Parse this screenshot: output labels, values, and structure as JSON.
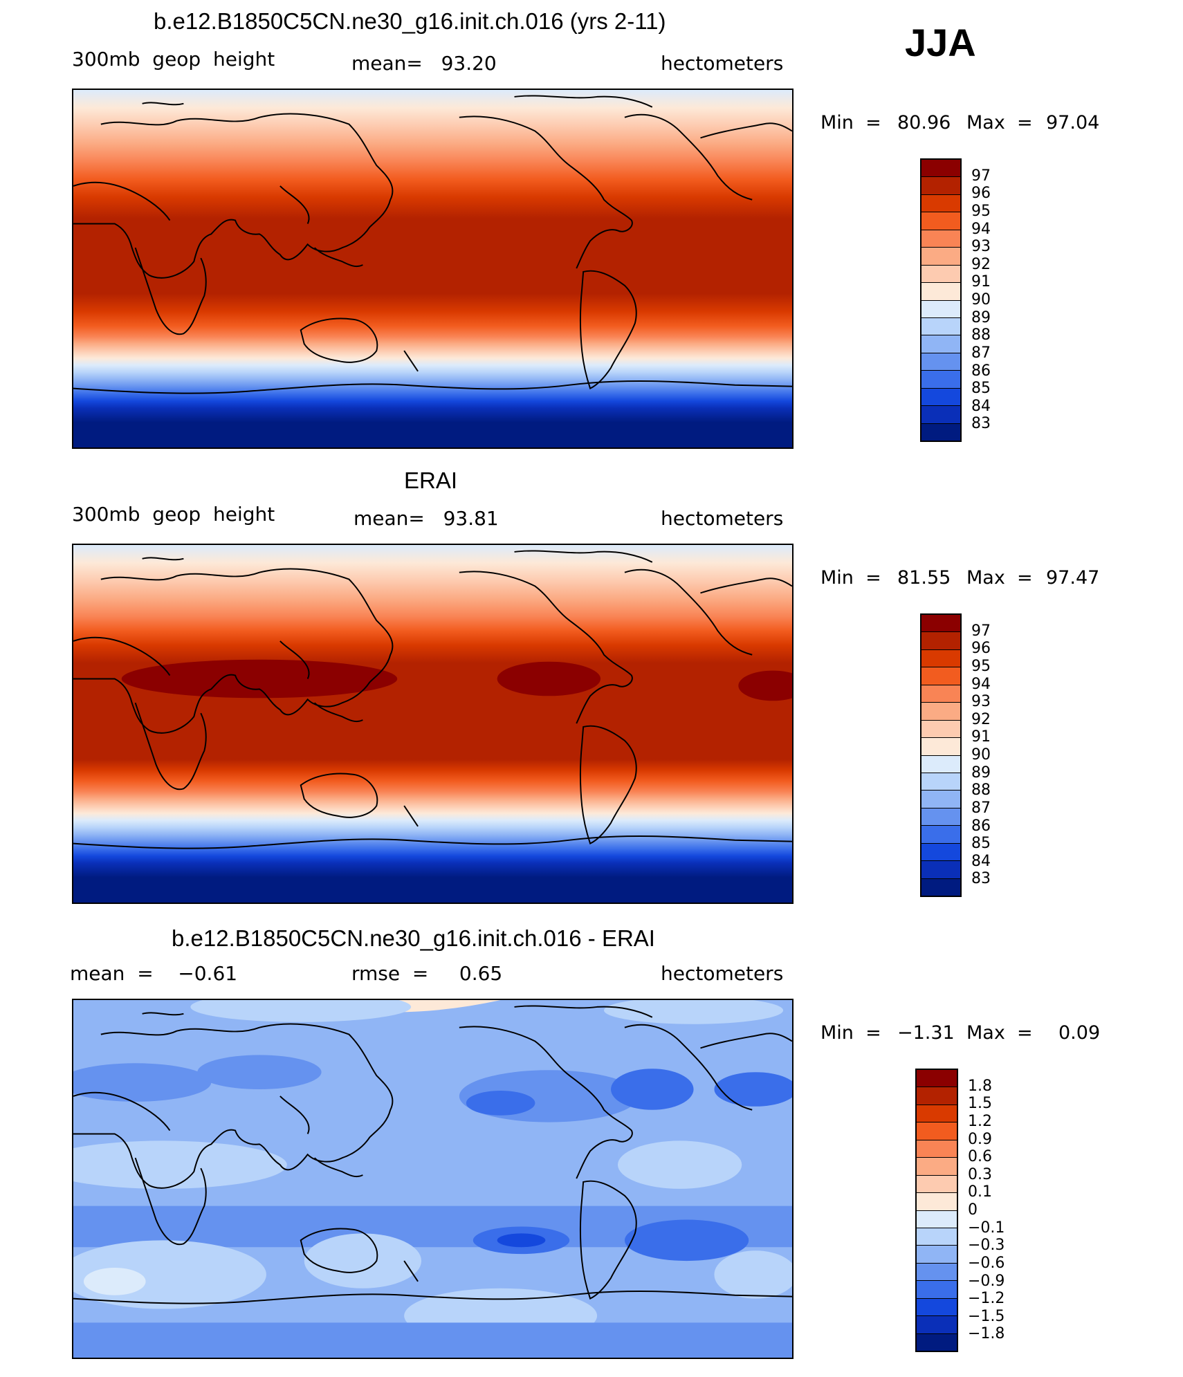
{
  "season": "JJA",
  "panels": [
    {
      "title": "b.e12.B1850C5CN.ne30_g16.init.ch.016 (yrs 2-11)",
      "left_label": "300mb  geop  height",
      "center_label": "mean=   93.20",
      "units": "hectometers",
      "min_label": "Min  =",
      "min_value": "80.96",
      "max_label": "Max  =",
      "max_value": "97.04",
      "colorbar": {
        "labels": [
          "97",
          "96",
          "95",
          "94",
          "93",
          "92",
          "91",
          "90",
          "89",
          "88",
          "87",
          "86",
          "85",
          "84",
          "83"
        ],
        "colors": [
          "#8b0000",
          "#b32200",
          "#d93a00",
          "#f25c1f",
          "#f98455",
          "#fbab84",
          "#fdcbb0",
          "#fde9d8",
          "#dcebfb",
          "#b8d4fa",
          "#90b5f5",
          "#6592ef",
          "#3a6eea",
          "#1448dd",
          "#0a2fb8",
          "#001b80"
        ]
      }
    },
    {
      "title": "ERAI",
      "left_label": "300mb  geop  height",
      "center_label": "mean=   93.81",
      "units": "hectometers",
      "min_label": "Min  =",
      "min_value": "81.55",
      "max_label": "Max  =",
      "max_value": "97.47",
      "colorbar": {
        "labels": [
          "97",
          "96",
          "95",
          "94",
          "93",
          "92",
          "91",
          "90",
          "89",
          "88",
          "87",
          "86",
          "85",
          "84",
          "83"
        ],
        "colors": [
          "#8b0000",
          "#b32200",
          "#d93a00",
          "#f25c1f",
          "#f98455",
          "#fbab84",
          "#fdcbb0",
          "#fde9d8",
          "#dcebfb",
          "#b8d4fa",
          "#90b5f5",
          "#6592ef",
          "#3a6eea",
          "#1448dd",
          "#0a2fb8",
          "#001b80"
        ]
      }
    },
    {
      "title": "b.e12.B1850C5CN.ne30_g16.init.ch.016 - ERAI",
      "left_label": "mean  =    −0.61",
      "center_label": "rmse  =     0.65",
      "units": "hectometers",
      "min_label": "Min  =",
      "min_value": "−1.31",
      "max_label": "Max  =",
      "max_value": "0.09",
      "colorbar": {
        "labels": [
          "1.8",
          "1.5",
          "1.2",
          "0.9",
          "0.6",
          "0.3",
          "0.1",
          "0",
          "−0.1",
          "−0.3",
          "−0.6",
          "−0.9",
          "−1.2",
          "−1.5",
          "−1.8"
        ],
        "colors": [
          "#8b0000",
          "#b32200",
          "#d93a00",
          "#f25c1f",
          "#f98455",
          "#fbab84",
          "#fdcbb0",
          "#fde9d8",
          "#dcebfb",
          "#b8d4fa",
          "#90b5f5",
          "#6592ef",
          "#3a6eea",
          "#1448dd",
          "#0a2fb8",
          "#001b80"
        ]
      }
    }
  ]
}
